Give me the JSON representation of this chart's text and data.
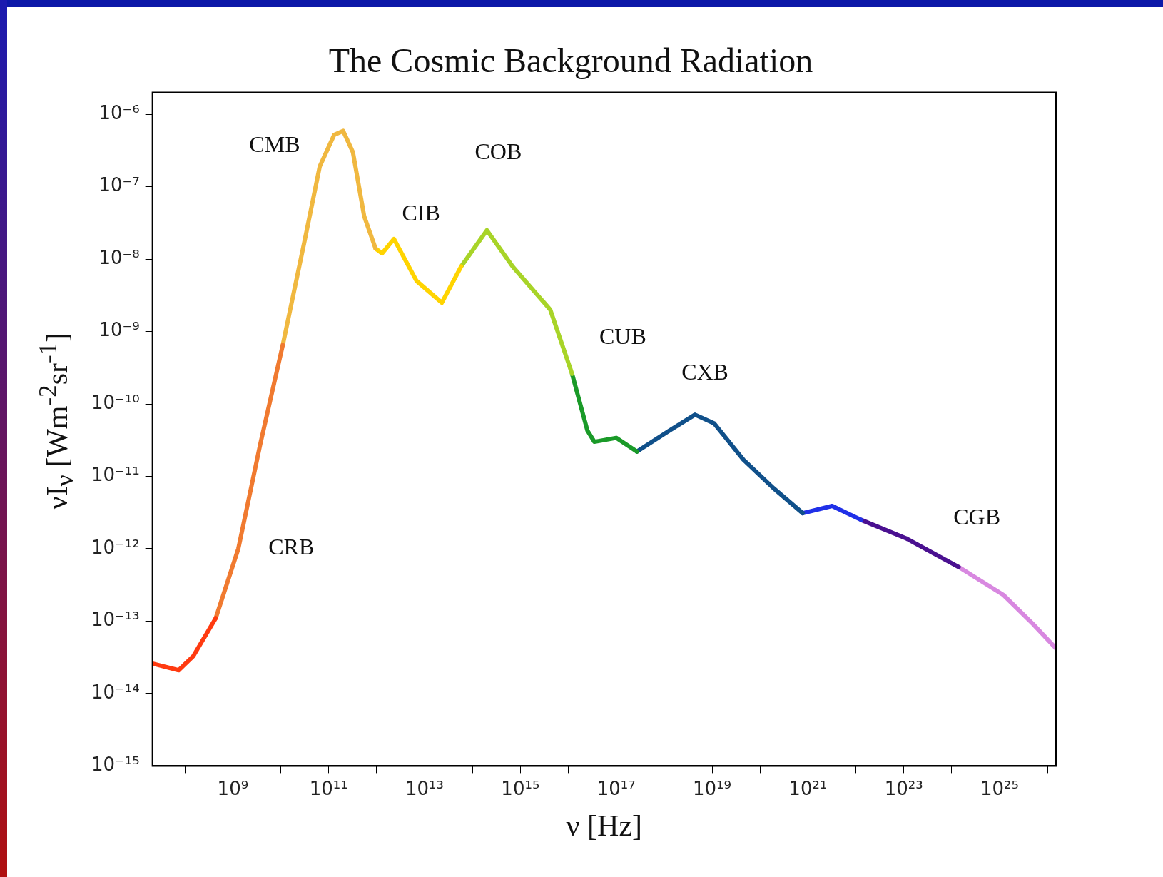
{
  "chart_data": {
    "type": "line",
    "title": "The Cosmic Background Radiation",
    "xlabel": "ν [Hz]",
    "ylabel": "νI$_{ν}$ [Wm$^{-2}$sr$^{-1}$]",
    "log": "xy",
    "grid": false,
    "legend": false,
    "marker": "none",
    "line_style": "solid",
    "xlim": [
      21000000.0,
      1.5e+26
    ],
    "ylim": [
      1e-15,
      2e-06
    ],
    "xticks": [
      {
        "value": 100000000.0,
        "label": null
      },
      {
        "value": 1000000000.0,
        "label": "10⁹"
      },
      {
        "value": 10000000000.0,
        "label": null
      },
      {
        "value": 100000000000.0,
        "label": "10¹¹"
      },
      {
        "value": 1000000000000.0,
        "label": null
      },
      {
        "value": 10000000000000.0,
        "label": "10¹³"
      },
      {
        "value": 100000000000000.0,
        "label": null
      },
      {
        "value": 1000000000000000.0,
        "label": "10¹⁵"
      },
      {
        "value": 1e+16,
        "label": null
      },
      {
        "value": 1e+17,
        "label": "10¹⁷"
      },
      {
        "value": 1e+18,
        "label": null
      },
      {
        "value": 1e+19,
        "label": "10¹⁹"
      },
      {
        "value": 1e+20,
        "label": null
      },
      {
        "value": 1e+21,
        "label": "10²¹"
      },
      {
        "value": 1e+22,
        "label": null
      },
      {
        "value": 1e+23,
        "label": "10²³"
      },
      {
        "value": 1e+24,
        "label": null
      },
      {
        "value": 1e+25,
        "label": "10²⁵"
      },
      {
        "value": 1e+26,
        "label": null
      }
    ],
    "yticks": [
      {
        "value": 1e-15,
        "label": "10⁻¹⁵"
      },
      {
        "value": 1e-14,
        "label": "10⁻¹⁴"
      },
      {
        "value": 1e-13,
        "label": "10⁻¹³"
      },
      {
        "value": 1e-12,
        "label": "10⁻¹²"
      },
      {
        "value": 1e-11,
        "label": "10⁻¹¹"
      },
      {
        "value": 1e-10,
        "label": "10⁻¹⁰"
      },
      {
        "value": 1e-09,
        "label": "10⁻⁹"
      },
      {
        "value": 1e-08,
        "label": "10⁻⁸"
      },
      {
        "value": 1e-07,
        "label": "10⁻⁷"
      },
      {
        "value": 1e-06,
        "label": "10⁻⁶"
      }
    ],
    "series": [
      {
        "color": "#ff3a10",
        "x": [
          21000000.0,
          74000000.0,
          150000000.0,
          440000000.0
        ],
        "values": [
          2.6e-14,
          2.1e-14,
          3.3e-14,
          1.1e-13
        ]
      },
      {
        "name": "CRB",
        "color": "#f07a30",
        "x": [
          440000000.0,
          1300000000.0,
          3700000000.0,
          11000000000.0
        ],
        "values": [
          1.1e-13,
          1e-12,
          2.7e-11,
          6.5e-10
        ]
      },
      {
        "name": "CMB",
        "color": "#f0b840",
        "x": [
          11000000000.0,
          32000000000.0,
          65000000000.0,
          130000000000.0,
          200000000000.0,
          320000000000.0,
          550000000000.0,
          950000000000.0
        ],
        "values": [
          6.5e-10,
          1.9e-08,
          1.9e-07,
          5.2e-07,
          5.9e-07,
          3e-07,
          3.9e-08,
          1.4e-08
        ]
      },
      {
        "name": "CIB",
        "color": "#ffd400",
        "x": [
          950000000000.0,
          1300000000000.0,
          2300000000000.0,
          6800000000000.0,
          23000000000000.0,
          58000000000000.0
        ],
        "values": [
          1.4e-08,
          1.2e-08,
          1.9e-08,
          5e-09,
          2.5e-09,
          7.9e-09
        ]
      },
      {
        "name": "COB",
        "color": "#a8d428",
        "x": [
          58000000000000.0,
          200000000000000.0,
          690000000000000.0,
          4200000000000000.0,
          1.2e+16
        ],
        "values": [
          7.9e-09,
          2.5e-08,
          7.9e-09,
          2e-09,
          2.6e-10
        ]
      },
      {
        "name": "CUB",
        "color": "#1a9a28",
        "x": [
          1.2e+16,
          2.5e+16,
          3.5e+16,
          1e+17,
          2.7e+17
        ],
        "values": [
          2.6e-10,
          4.3e-11,
          3e-11,
          3.4e-11,
          2.2e-11
        ]
      },
      {
        "name": "CXB",
        "color": "#10508a",
        "x": [
          2.7e+17,
          1.3e+18,
          4.4e+18,
          1.1e+19,
          4.5e+19,
          1.9e+20,
          7.8e+20
        ],
        "values": [
          2.2e-11,
          4.3e-11,
          7.1e-11,
          5.4e-11,
          1.7e-11,
          6.9e-12,
          3.1e-12
        ]
      },
      {
        "color": "#2030e8",
        "x": [
          7.8e+20,
          3.2e+21,
          1.3e+22
        ],
        "values": [
          3.1e-12,
          3.9e-12,
          2.5e-12
        ]
      },
      {
        "name": "CGB",
        "color": "#4a1090",
        "x": [
          1.3e+22,
          1.1e+23,
          1.4e+24
        ],
        "values": [
          2.5e-12,
          1.4e-12,
          5.6e-13
        ]
      },
      {
        "color": "#d888e0",
        "x": [
          1.4e+24,
          1.2e+25,
          5e+25,
          1.5e+26
        ],
        "values": [
          5.6e-13,
          2.3e-13,
          9.1e-14,
          4.2e-14
        ]
      }
    ]
  }
}
